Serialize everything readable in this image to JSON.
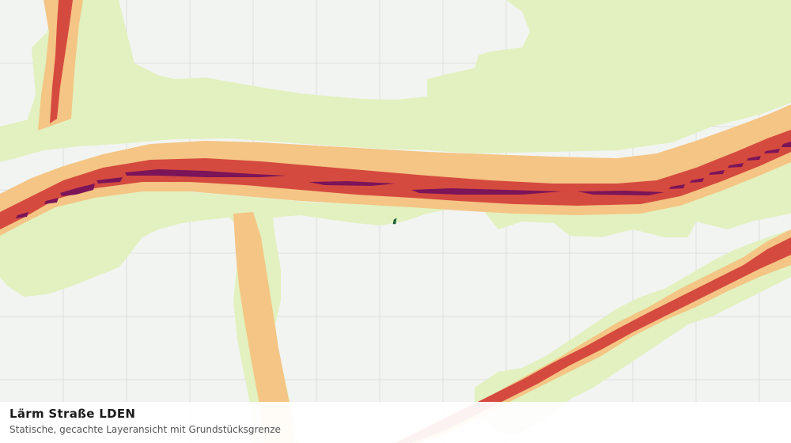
{
  "layer": {
    "title": "Lärm Straße LDEN",
    "subtitle": "Statische, gecachte Layeransicht mit Grundstücksgrenze"
  },
  "colors": {
    "background": "#f2f4f2",
    "grid": "#dcdfdc",
    "noise_zone_1": "#e2f1bf",
    "noise_zone_2": "#f4c584",
    "noise_zone_3": "#d54a3f",
    "noise_zone_4": "#7b1458",
    "parcel_boundary": "#1d5f3a"
  }
}
